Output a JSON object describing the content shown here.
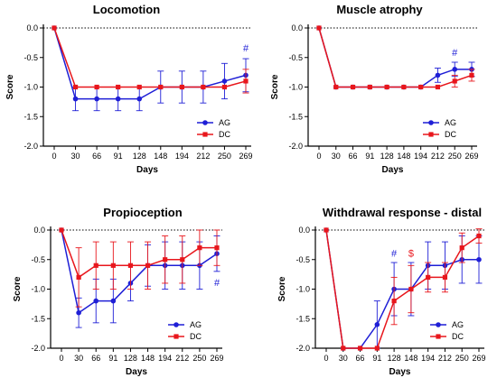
{
  "colors": {
    "AG": "#1f1fd6",
    "DC": "#e8161c"
  },
  "chart_data": [
    {
      "type": "line",
      "title": "Locomotion",
      "xlabel": "Days",
      "ylabel": "Score",
      "categories": [
        "0",
        "30",
        "66",
        "91",
        "128",
        "148",
        "194",
        "212",
        "250",
        "269"
      ],
      "ylim": [
        -2.0,
        0.0
      ],
      "yticks": [
        "0.0",
        "-0.5",
        "-1.0",
        "-1.5",
        "-2.0"
      ],
      "reference_line": 0,
      "legend_position": "bottom-right",
      "series": [
        {
          "name": "AG",
          "values": [
            0,
            -1.2,
            -1.2,
            -1.2,
            -1.2,
            -1.0,
            -1.0,
            -1.0,
            -0.9,
            -0.8
          ],
          "errors": [
            0,
            0.2,
            0.2,
            0.2,
            0.2,
            0.27,
            0.27,
            0.27,
            0.3,
            0.28
          ]
        },
        {
          "name": "DC",
          "values": [
            0,
            -1.0,
            -1.0,
            -1.0,
            -1.0,
            -1.0,
            -1.0,
            -1.0,
            -1.0,
            -0.9
          ],
          "errors": [
            0,
            0,
            0,
            0,
            0,
            0,
            0,
            0,
            0,
            0.2
          ]
        }
      ],
      "annotations": [
        {
          "text": "#",
          "x": "269",
          "y": -0.4,
          "series": "AG"
        }
      ]
    },
    {
      "type": "line",
      "title": "Muscle atrophy",
      "xlabel": "Days",
      "ylabel": "Score",
      "categories": [
        "0",
        "30",
        "66",
        "91",
        "128",
        "148",
        "194",
        "212",
        "250",
        "269"
      ],
      "ylim": [
        -2.0,
        0.0
      ],
      "yticks": [
        "0.0",
        "-0.5",
        "-1.0",
        "-1.5",
        "-2.0"
      ],
      "reference_line": 0,
      "legend_position": "bottom-right",
      "series": [
        {
          "name": "AG",
          "values": [
            0,
            -1.0,
            -1.0,
            -1.0,
            -1.0,
            -1.0,
            -1.0,
            -0.8,
            -0.7,
            -0.7
          ],
          "errors": [
            0,
            0,
            0,
            0,
            0,
            0,
            0,
            0.12,
            0.12,
            0.12
          ]
        },
        {
          "name": "DC",
          "values": [
            0,
            -1.0,
            -1.0,
            -1.0,
            -1.0,
            -1.0,
            -1.0,
            -1.0,
            -0.9,
            -0.8
          ],
          "errors": [
            0,
            0,
            0,
            0,
            0,
            0,
            0,
            0,
            0.1,
            0.1
          ]
        }
      ],
      "annotations": [
        {
          "text": "#",
          "x": "250",
          "y": -0.47,
          "series": "AG"
        }
      ]
    },
    {
      "type": "line",
      "title": "Propioception",
      "xlabel": "Days",
      "ylabel": "Score",
      "categories": [
        "0",
        "30",
        "66",
        "91",
        "128",
        "148",
        "194",
        "212",
        "250",
        "269"
      ],
      "ylim": [
        -2.0,
        0.0
      ],
      "yticks": [
        "0.0",
        "-0.5",
        "-1.0",
        "-1.5",
        "-2.0"
      ],
      "reference_line": 0,
      "legend_position": "bottom-right",
      "series": [
        {
          "name": "AG",
          "values": [
            0,
            -1.4,
            -1.2,
            -1.2,
            -0.9,
            -0.6,
            -0.6,
            -0.6,
            -0.6,
            -0.4
          ],
          "errors": [
            0,
            0.25,
            0.37,
            0.37,
            0.3,
            0.35,
            0.4,
            0.4,
            0.4,
            0.3
          ]
        },
        {
          "name": "DC",
          "values": [
            0,
            -0.8,
            -0.6,
            -0.6,
            -0.6,
            -0.6,
            -0.5,
            -0.5,
            -0.3,
            -0.3
          ],
          "errors": [
            0,
            0.5,
            0.4,
            0.4,
            0.4,
            0.4,
            0.4,
            0.4,
            0.3,
            0.3
          ]
        }
      ],
      "annotations": [
        {
          "text": "#",
          "x": "269",
          "y": -0.95,
          "series": "AG"
        }
      ]
    },
    {
      "type": "line",
      "title": "Withdrawal response - distal",
      "xlabel": "Days",
      "ylabel": "Score",
      "categories": [
        "0",
        "30",
        "66",
        "91",
        "128",
        "148",
        "194",
        "212",
        "250",
        "269"
      ],
      "ylim": [
        -2.0,
        0.0
      ],
      "yticks": [
        "0.0",
        "-0.5",
        "-1.0",
        "-1.5",
        "-2.0"
      ],
      "reference_line": 0,
      "legend_position": "bottom-right",
      "series": [
        {
          "name": "AG",
          "values": [
            0,
            -2.0,
            -2.0,
            -1.6,
            -1.0,
            -1.0,
            -0.6,
            -0.6,
            -0.5,
            -0.5
          ],
          "errors": [
            0,
            0,
            0,
            0.4,
            0.45,
            0.45,
            0.4,
            0.4,
            0.4,
            0.4
          ]
        },
        {
          "name": "DC",
          "values": [
            0,
            -2.0,
            -2.0,
            -2.0,
            -1.2,
            -1.0,
            -0.8,
            -0.8,
            -0.3,
            -0.1
          ],
          "errors": [
            0,
            0,
            0,
            0,
            0.4,
            0.4,
            0.25,
            0.25,
            0.25,
            0.12
          ]
        }
      ],
      "annotations": [
        {
          "text": "#",
          "x": "128",
          "y": -0.45,
          "series": "AG"
        },
        {
          "text": "$",
          "x": "148",
          "y": -0.45,
          "series": "DC"
        }
      ]
    }
  ]
}
